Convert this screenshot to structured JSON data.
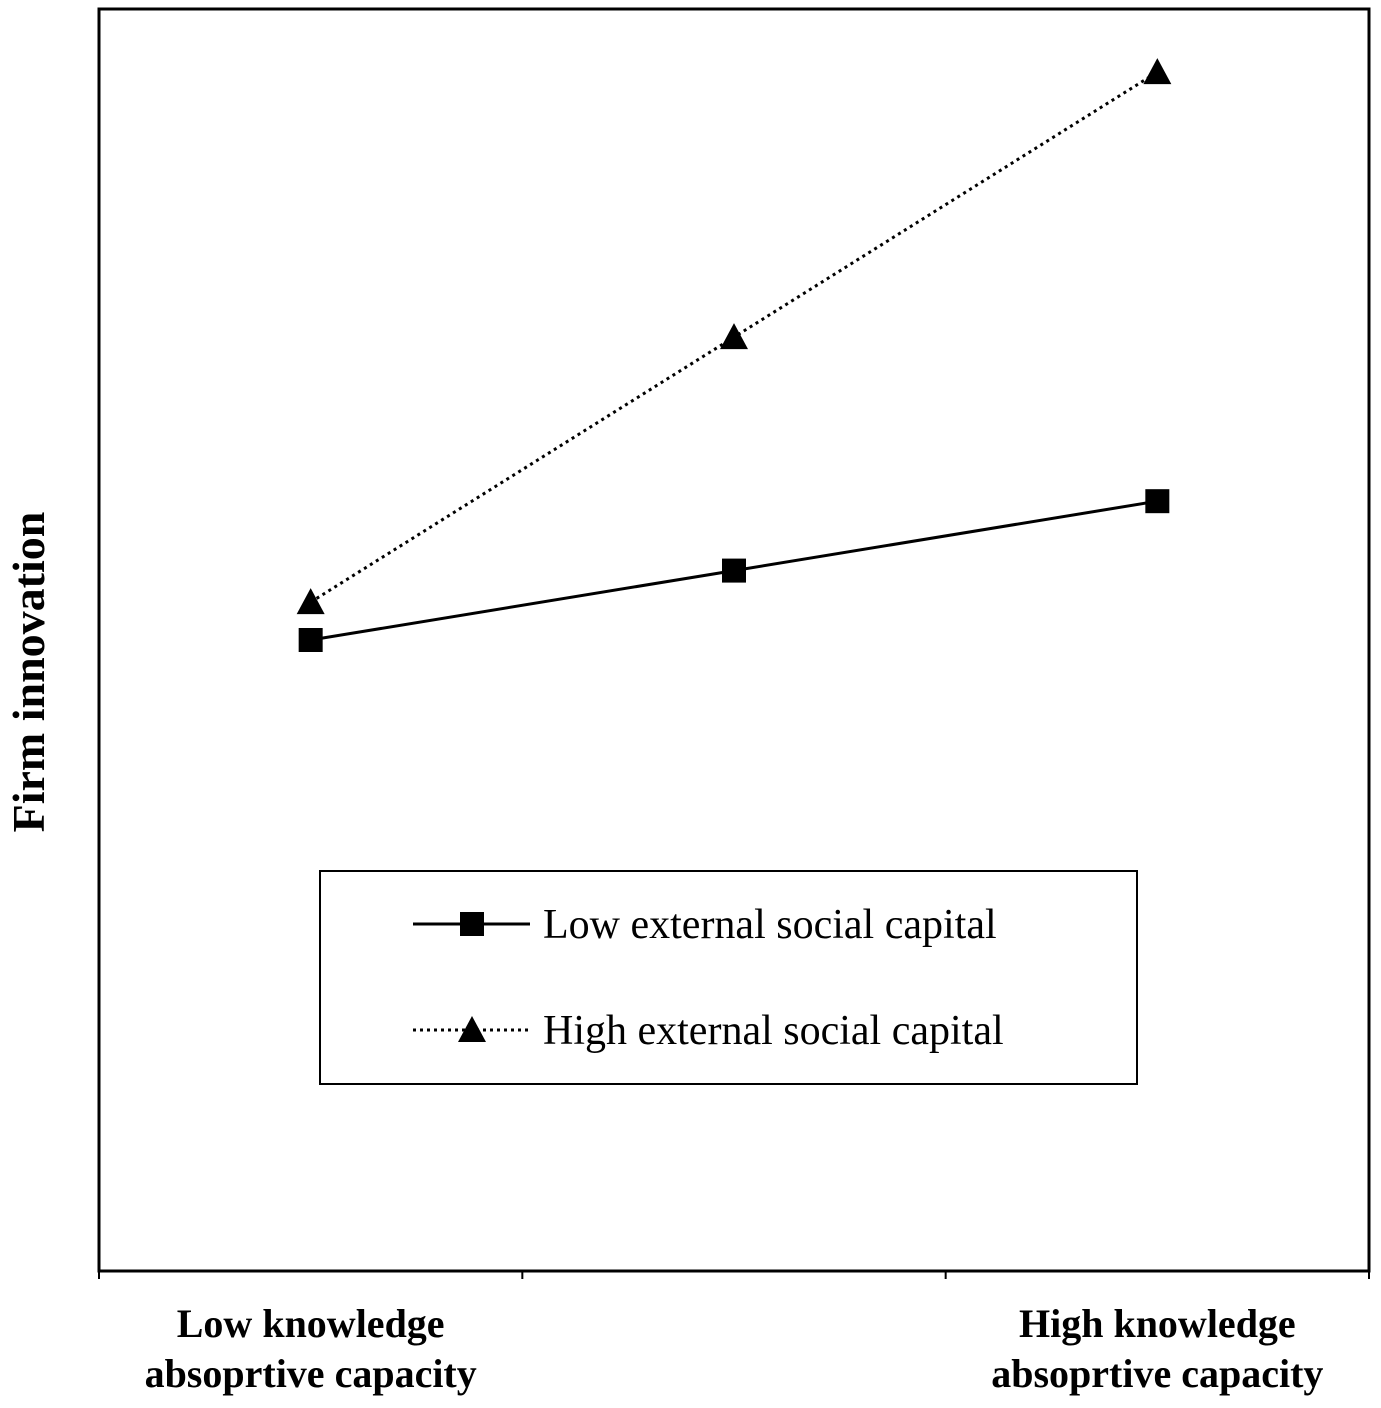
{
  "chart_data": {
    "type": "line",
    "title": "",
    "xlabel": "",
    "ylabel": "Firm innovation",
    "x": [
      0,
      1,
      2
    ],
    "xlim": [
      -0.5,
      2.5
    ],
    "ylim": [
      0,
      10
    ],
    "x_tick_labels": [
      {
        "x": 0,
        "lines": [
          "Low knowledge",
          "absoprtive capacity"
        ]
      },
      {
        "x": 2,
        "lines": [
          "High knowledge",
          "absoprtive capacity"
        ]
      }
    ],
    "grid": false,
    "legend_position": "center",
    "series": [
      {
        "name": "Low external social capital",
        "values": [
          5.0,
          5.55,
          6.1
        ],
        "line_style": "solid",
        "marker": "square",
        "color": "#000000"
      },
      {
        "name": "High external social capital",
        "values": [
          5.3,
          7.4,
          9.5
        ],
        "line_style": "dotted",
        "marker": "triangle",
        "color": "#000000"
      }
    ]
  }
}
